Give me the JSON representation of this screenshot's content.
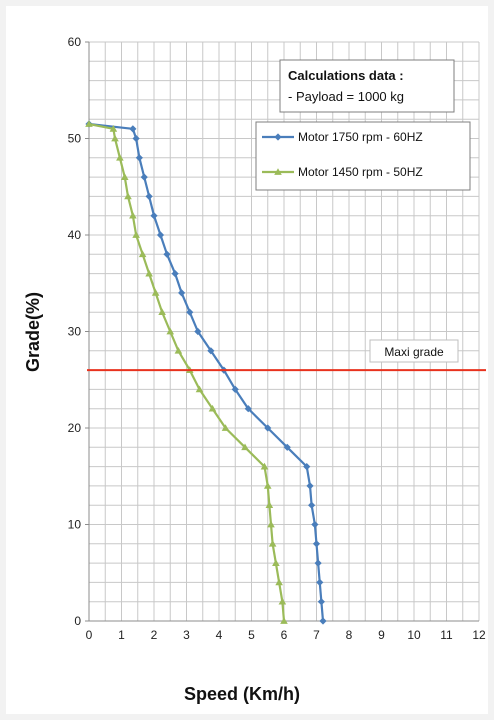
{
  "chart_data": {
    "type": "line",
    "xlabel": "Speed (Km/h)",
    "ylabel": "Grade(%)",
    "xlim": [
      0,
      12
    ],
    "ylim": [
      0,
      60
    ],
    "x_ticks": [
      0,
      1,
      2,
      3,
      4,
      5,
      6,
      7,
      8,
      9,
      10,
      11,
      12
    ],
    "y_ticks": [
      0,
      10,
      20,
      30,
      40,
      50,
      60
    ],
    "grid": true,
    "legend_position": "top-right",
    "series": [
      {
        "name": "Motor 1750 rpm - 60HZ",
        "color": "#4a7ebb",
        "marker": "diamond",
        "points": [
          [
            7.2,
            0
          ],
          [
            7.15,
            2
          ],
          [
            7.1,
            4
          ],
          [
            7.05,
            6
          ],
          [
            7.0,
            8
          ],
          [
            6.95,
            10
          ],
          [
            6.85,
            12
          ],
          [
            6.8,
            14
          ],
          [
            6.7,
            16
          ],
          [
            6.1,
            18
          ],
          [
            5.5,
            20
          ],
          [
            4.9,
            22
          ],
          [
            4.5,
            24
          ],
          [
            4.15,
            26
          ],
          [
            3.75,
            28
          ],
          [
            3.35,
            30
          ],
          [
            3.1,
            32
          ],
          [
            2.85,
            34
          ],
          [
            2.65,
            36
          ],
          [
            2.4,
            38
          ],
          [
            2.2,
            40
          ],
          [
            2.0,
            42
          ],
          [
            1.85,
            44
          ],
          [
            1.7,
            46
          ],
          [
            1.55,
            48
          ],
          [
            1.45,
            50
          ],
          [
            1.35,
            51
          ],
          [
            0,
            51.5
          ]
        ]
      },
      {
        "name": "Motor 1450 rpm - 50HZ",
        "color": "#9bbb59",
        "marker": "triangle",
        "points": [
          [
            6.0,
            0
          ],
          [
            5.95,
            2
          ],
          [
            5.85,
            4
          ],
          [
            5.75,
            6
          ],
          [
            5.65,
            8
          ],
          [
            5.6,
            10
          ],
          [
            5.55,
            12
          ],
          [
            5.5,
            14
          ],
          [
            5.4,
            16
          ],
          [
            4.8,
            18
          ],
          [
            4.2,
            20
          ],
          [
            3.8,
            22
          ],
          [
            3.4,
            24
          ],
          [
            3.1,
            26
          ],
          [
            2.75,
            28
          ],
          [
            2.5,
            30
          ],
          [
            2.25,
            32
          ],
          [
            2.05,
            34
          ],
          [
            1.85,
            36
          ],
          [
            1.65,
            38
          ],
          [
            1.45,
            40
          ],
          [
            1.35,
            42
          ],
          [
            1.2,
            44
          ],
          [
            1.1,
            46
          ],
          [
            0.95,
            48
          ],
          [
            0.8,
            50
          ],
          [
            0.75,
            51
          ],
          [
            0,
            51.5
          ]
        ]
      }
    ],
    "reference_line": {
      "label": "Maxi grade",
      "y": 26,
      "color": "#e8321e"
    },
    "note": {
      "title": "Calculations data :",
      "line": "- Payload = 1000 kg"
    }
  }
}
